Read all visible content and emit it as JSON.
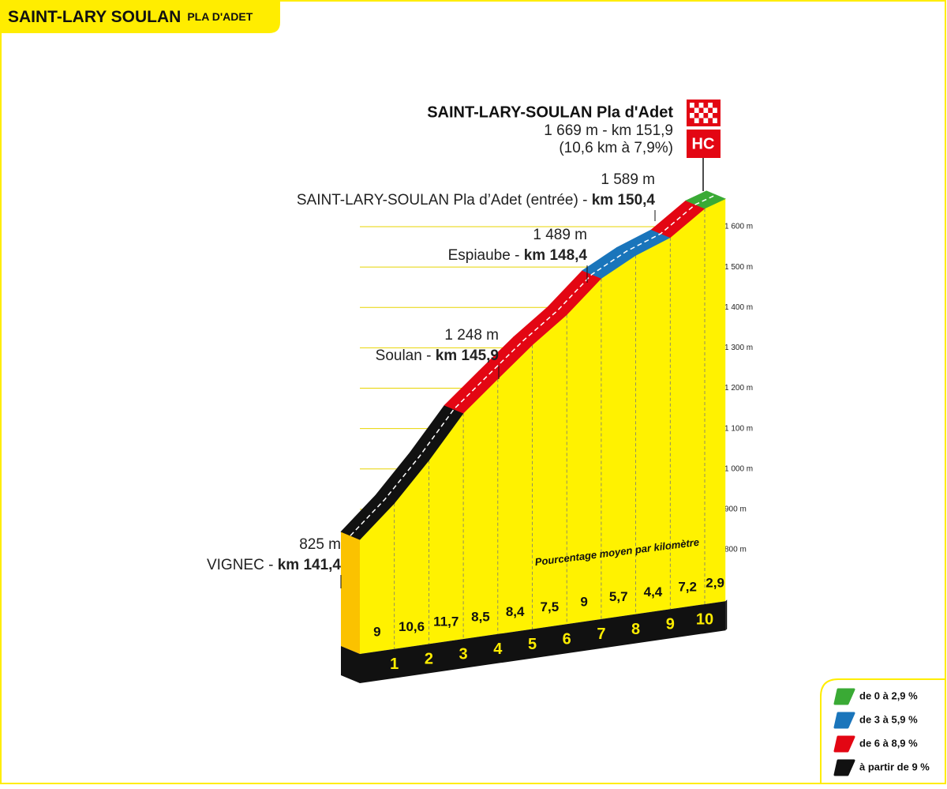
{
  "chart_data": {
    "type": "profile",
    "title": "SAINT-LARY SOULAN",
    "subtitle": "PLA D'ADET",
    "x": [
      0,
      1,
      2,
      3,
      4,
      5,
      6,
      7,
      8,
      9,
      10,
      10.6
    ],
    "values": [
      825,
      915,
      1021,
      1138,
      1223,
      1307,
      1382,
      1472,
      1529,
      1573,
      1645,
      1669
    ],
    "xlim": [
      0,
      10.6
    ],
    "xticks": [
      1,
      2,
      3,
      4,
      5,
      6,
      7,
      8,
      9,
      10
    ],
    "ylim": [
      800,
      1600
    ],
    "yticks": [
      {
        "value": 800,
        "label": "800 m"
      },
      {
        "value": 900,
        "label": "900 m"
      },
      {
        "value": 1000,
        "label": "1 000 m"
      },
      {
        "value": 1100,
        "label": "1 100 m"
      },
      {
        "value": 1200,
        "label": "1 200 m"
      },
      {
        "value": 1300,
        "label": "1 300 m"
      },
      {
        "value": 1400,
        "label": "1 400 m"
      },
      {
        "value": 1500,
        "label": "1 500 m"
      },
      {
        "value": 1600,
        "label": "1 600 m"
      }
    ],
    "gradients": {
      "values": [
        9,
        10.6,
        11.7,
        8.5,
        8.4,
        7.5,
        9,
        5.7,
        4.4,
        7.2,
        2.9
      ],
      "value_labels": [
        "9",
        "10,6",
        "11,7",
        "8,5",
        "8,4",
        "7,5",
        "9",
        "5,7",
        "4,4",
        "7,2",
        "2,9"
      ],
      "classes": [
        3,
        3,
        3,
        2,
        2,
        2,
        2,
        1,
        1,
        2,
        0
      ],
      "note": "Pourcentage moyen par kilomètre"
    },
    "legend": [
      {
        "label": "de 0 à 2,9 %",
        "color": "#3aaa35"
      },
      {
        "label": "de 3 à 5,9 %",
        "color": "#1a75bb"
      },
      {
        "label": "de 6 à 8,9 %",
        "color": "#e30613"
      },
      {
        "label": "à partir de 9 %",
        "color": "#111111"
      }
    ],
    "annotations": [
      {
        "altitude": "825 m",
        "place": "VIGNEC - ",
        "km": "km 141,4"
      },
      {
        "altitude": "1 248 m",
        "place": "Soulan - ",
        "km": "km 145,9"
      },
      {
        "altitude": "1 489 m",
        "place": "Espiaube - ",
        "km": "km 148,4"
      },
      {
        "altitude": "1 589 m",
        "place": "SAINT-LARY-SOULAN Pla d’Adet (entrée) - ",
        "km": "km 150,4"
      }
    ],
    "summit": {
      "name": "SAINT-LARY-SOULAN Pla d'Adet",
      "detail": "1 669 m - km 151,9",
      "stats": "(10,6 km à 7,9%)",
      "category": "HC"
    }
  }
}
